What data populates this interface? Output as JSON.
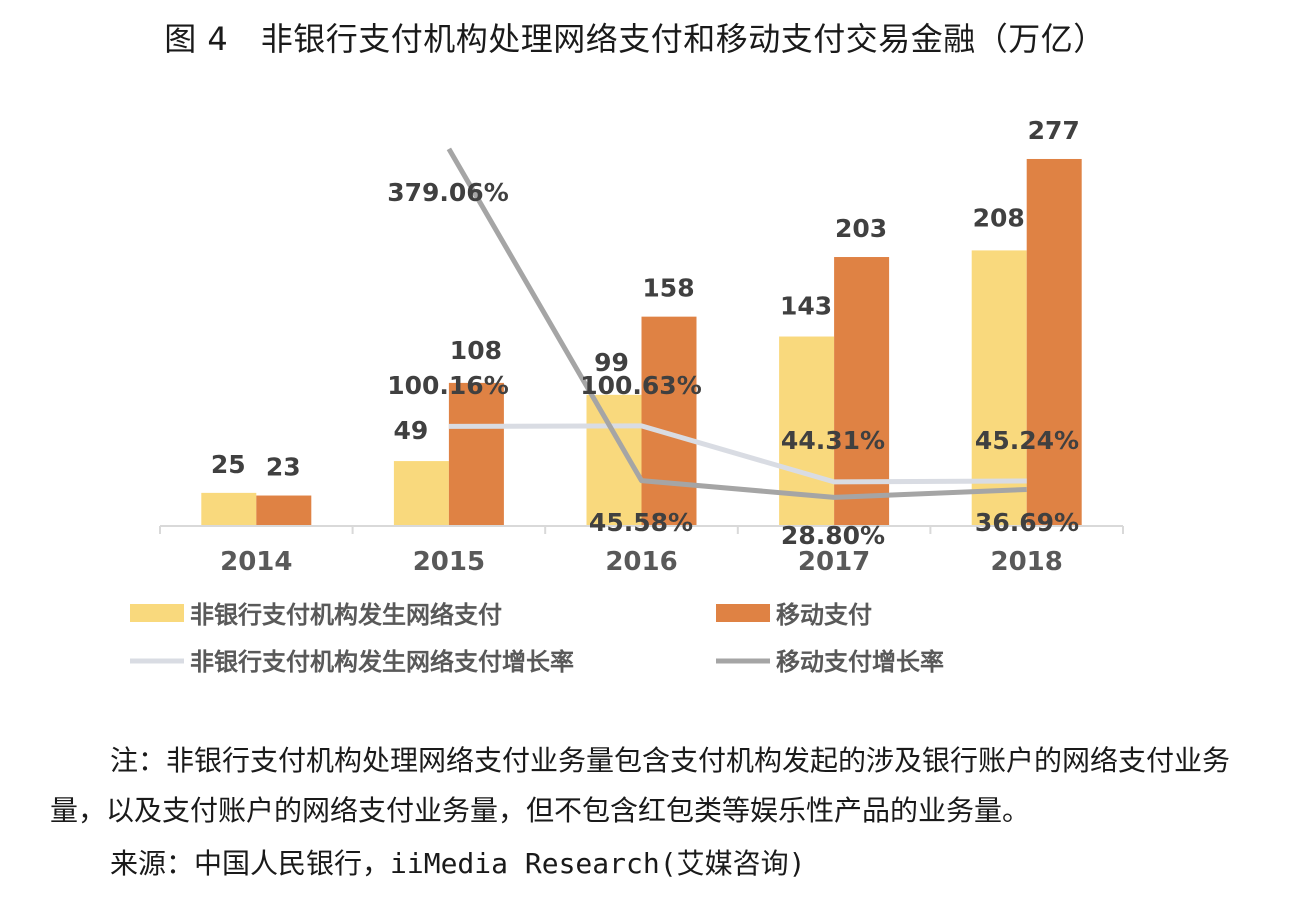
{
  "chart_data": {
    "type": "bar",
    "title": "图 4　非银行支付机构处理网络支付和移动支付交易金融（万亿）",
    "categories": [
      "2014",
      "2015",
      "2016",
      "2017",
      "2018"
    ],
    "series": [
      {
        "name": "非银行支付机构发生网络支付",
        "kind": "bar",
        "color": "#f9d97d",
        "values": [
          25,
          49,
          99,
          143,
          208
        ],
        "labels": [
          "25",
          "49",
          "99",
          "143",
          "208"
        ]
      },
      {
        "name": "移动支付",
        "kind": "bar",
        "color": "#df8244",
        "values": [
          23,
          108,
          158,
          203,
          277
        ],
        "labels": [
          "23",
          "108",
          "158",
          "203",
          "277"
        ]
      },
      {
        "name": "非银行支付机构发生网络支付增长率",
        "kind": "line",
        "color": "#d9dce3",
        "values": [
          null,
          100.16,
          100.63,
          44.31,
          45.24
        ],
        "labels": [
          "",
          "100.16%",
          "100.63%",
          "44.31%",
          "45.24%"
        ]
      },
      {
        "name": "移动支付增长率",
        "kind": "line",
        "color": "#a5a5a5",
        "values": [
          null,
          379.06,
          45.58,
          28.8,
          36.69
        ],
        "labels": [
          "",
          "379.06%",
          "45.58%",
          "28.80%",
          "36.69%"
        ]
      }
    ],
    "bar_axis": {
      "ylim": [
        0,
        300
      ]
    },
    "line_axis": {
      "ylim": [
        0,
        400
      ],
      "note": "secondary axis, not displayed"
    },
    "grid": false,
    "legend_position": "bottom"
  },
  "note": "注：非银行支付机构处理网络支付业务量包含支付机构发起的涉及银行账户的网络支付业务量，以及支付账户的网络支付业务量，但不包含红包类等娱乐性产品的业务量。",
  "source": "来源：中国人民银行，iiMedia Research(艾媒咨询)"
}
